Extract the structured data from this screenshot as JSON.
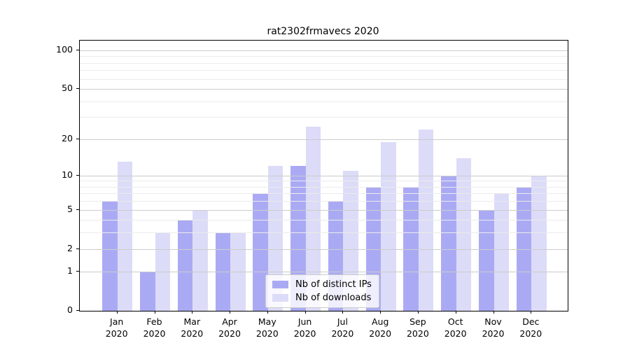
{
  "chart_data": {
    "type": "bar",
    "title": "rat2302frmavecs 2020",
    "categories": [
      {
        "month": "Jan",
        "year": "2020"
      },
      {
        "month": "Feb",
        "year": "2020"
      },
      {
        "month": "Mar",
        "year": "2020"
      },
      {
        "month": "Apr",
        "year": "2020"
      },
      {
        "month": "May",
        "year": "2020"
      },
      {
        "month": "Jun",
        "year": "2020"
      },
      {
        "month": "Jul",
        "year": "2020"
      },
      {
        "month": "Aug",
        "year": "2020"
      },
      {
        "month": "Sep",
        "year": "2020"
      },
      {
        "month": "Oct",
        "year": "2020"
      },
      {
        "month": "Nov",
        "year": "2020"
      },
      {
        "month": "Dec",
        "year": "2020"
      }
    ],
    "series": [
      {
        "name": "Nb of distinct IPs",
        "color": "#aaaaf4",
        "values": [
          6,
          1,
          4,
          3,
          7,
          12,
          6,
          8,
          8,
          10,
          5,
          8
        ]
      },
      {
        "name": "Nb of downloads",
        "color": "#dcdcf8",
        "values": [
          13,
          3,
          5,
          3,
          12,
          25,
          11,
          19,
          24,
          14,
          7,
          10
        ]
      }
    ],
    "xlabel": "",
    "ylabel": "",
    "yscale": "log1p",
    "ylim": [
      0,
      120
    ],
    "yticks": [
      100,
      50,
      20,
      10,
      5,
      2,
      1,
      0
    ],
    "minor_yticks": [
      3,
      4,
      6,
      7,
      8,
      9,
      30,
      40,
      60,
      70,
      80,
      90
    ],
    "grid": "on",
    "grid_above_bars": true,
    "legend_position": "lower center",
    "colors": {
      "major_grid": "#cccccc",
      "minor_grid": "#ebebeb",
      "axis": "#000000",
      "background": "#ffffff"
    }
  }
}
